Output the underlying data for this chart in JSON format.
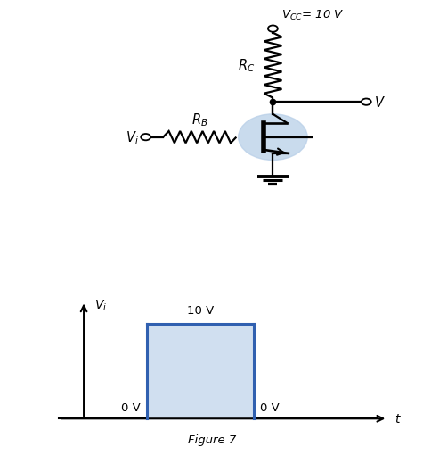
{
  "bg_color": "#ffffff",
  "circuit": {
    "vcc_label": "$V_{CC}$= 10 V",
    "rc_label": "$R_C$",
    "rb_label": "$R_B$",
    "vi_label": "$V_i$",
    "v_label": "$V$",
    "transistor_circle_color": "#b8cfe8",
    "transistor_circle_alpha": 0.75,
    "wire_color": "#000000",
    "resistor_color": "#000000"
  },
  "graph": {
    "pulse_color": "#3060b0",
    "pulse_fill_color": "#b8cfe8",
    "pulse_fill_alpha": 0.65,
    "label_10v": "10 V",
    "label_0v_left": "0 V",
    "label_0v_right": "0 V",
    "vi_label": "$V_i$",
    "t_label": "$t$",
    "figure_label": "Figure 7",
    "pulse_lw": 2.2
  }
}
